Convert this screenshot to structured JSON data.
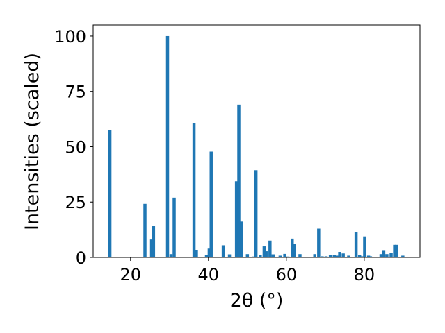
{
  "chart_data": {
    "type": "bar",
    "xlabel": "2θ (°)",
    "ylabel": "Intensities (scaled)",
    "xlim": [
      10.4,
      94.3
    ],
    "ylim": [
      0,
      105
    ],
    "xticks": [
      "20",
      "40",
      "60",
      "80"
    ],
    "yticks": [
      "0",
      "25",
      "50",
      "75",
      "100"
    ],
    "bar_color": "#1f77b4",
    "bar_width": 0.8,
    "grid": false,
    "x": [
      14.7,
      23.7,
      25.4,
      25.9,
      29.5,
      30.4,
      31.2,
      36.3,
      36.9,
      39.5,
      40.2,
      40.7,
      43.8,
      45.4,
      47.2,
      47.8,
      48.4,
      50.0,
      51.5,
      52.2,
      53.3,
      54.3,
      54.8,
      55.8,
      56.6,
      57.6,
      58.4,
      59.6,
      60.4,
      61.5,
      62.1,
      63.5,
      67.3,
      68.3,
      69.2,
      70.2,
      71.3,
      72.3,
      73.0,
      73.7,
      74.6,
      76.0,
      76.8,
      77.9,
      78.8,
      79.5,
      80.1,
      81.1,
      81.6,
      82.4,
      84.3,
      85.0,
      85.8,
      86.9,
      87.8,
      88.3,
      89.9
    ],
    "values": [
      57.5,
      24.2,
      8.1,
      14.1,
      100,
      1.5,
      27.0,
      60.5,
      3.4,
      1.2,
      4.0,
      47.8,
      5.5,
      1.4,
      34.4,
      69.0,
      16.2,
      1.5,
      0.4,
      39.4,
      1.0,
      5.0,
      2.8,
      7.6,
      1.4,
      0.3,
      0.8,
      1.6,
      0.4,
      8.5,
      6.2,
      1.5,
      1.5,
      13.0,
      0.5,
      0.5,
      1.0,
      1.0,
      0.8,
      2.5,
      1.8,
      0.8,
      0.3,
      11.4,
      1.2,
      0.5,
      9.5,
      0.8,
      0.5,
      0.3,
      1.5,
      3.0,
      1.5,
      2.0,
      5.7,
      5.7,
      0.8
    ]
  }
}
